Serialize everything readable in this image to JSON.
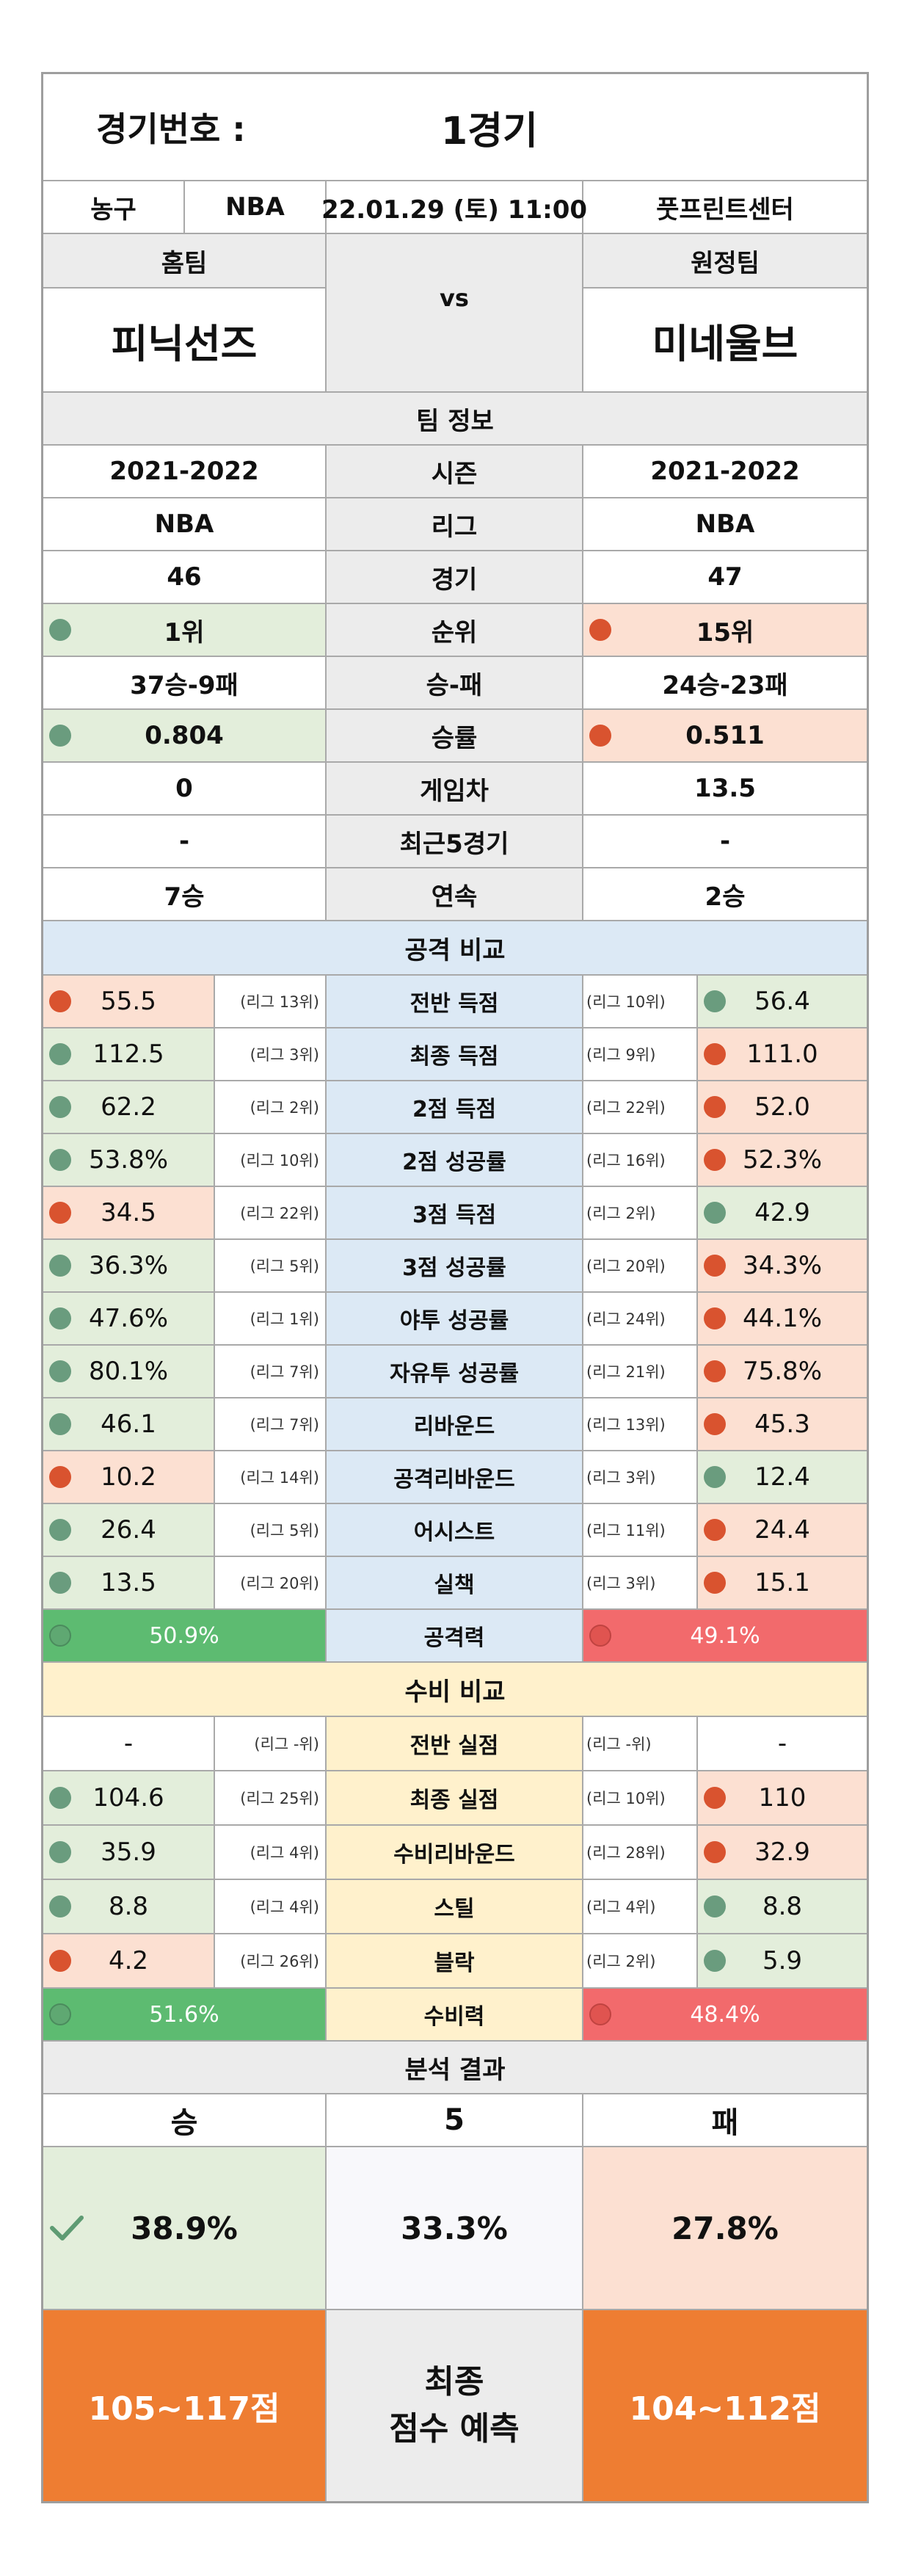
{
  "header": {
    "game_no_label": "경기번호 :",
    "game_no_value": "1경기",
    "sport": "농구",
    "league": "NBA",
    "datetime": "22.01.29 (토) 11:00",
    "venue": "풋프린트센터",
    "home_label": "홈팀",
    "away_label": "원정팀",
    "vs": "vs",
    "home_team": "피닉선즈",
    "away_team": "미네울브"
  },
  "team_info": {
    "title": "팀 정보",
    "rows": [
      {
        "label": "시즌",
        "home": "2021-2022",
        "away": "2021-2022"
      },
      {
        "label": "리그",
        "home": "NBA",
        "away": "NBA"
      },
      {
        "label": "경기",
        "home": "46",
        "away": "47"
      },
      {
        "label": "순위",
        "home": "1위",
        "away": "15위"
      },
      {
        "label": "승-패",
        "home": "37승-9패",
        "away": "24승-23패"
      },
      {
        "label": "승률",
        "home": "0.804",
        "away": "0.511"
      },
      {
        "label": "게임차",
        "home": "0",
        "away": "13.5"
      },
      {
        "label": "최근5경기",
        "home": "-",
        "away": "-"
      },
      {
        "label": "연속",
        "home": "7승",
        "away": "2승"
      }
    ]
  },
  "offense": {
    "title": "공격 비교",
    "rows": [
      {
        "label": "전반 득점",
        "home": "55.5",
        "home_rank": "(리그 13위)",
        "away": "56.4",
        "away_rank": "(리그 10위)",
        "home_better": false
      },
      {
        "label": "최종 득점",
        "home": "112.5",
        "home_rank": "(리그 3위)",
        "away": "111.0",
        "away_rank": "(리그 9위)",
        "home_better": true
      },
      {
        "label": "2점 득점",
        "home": "62.2",
        "home_rank": "(리그 2위)",
        "away": "52.0",
        "away_rank": "(리그 22위)",
        "home_better": true
      },
      {
        "label": "2점 성공률",
        "home": "53.8%",
        "home_rank": "(리그 10위)",
        "away": "52.3%",
        "away_rank": "(리그 16위)",
        "home_better": true
      },
      {
        "label": "3점 득점",
        "home": "34.5",
        "home_rank": "(리그 22위)",
        "away": "42.9",
        "away_rank": "(리그 2위)",
        "home_better": false
      },
      {
        "label": "3점 성공률",
        "home": "36.3%",
        "home_rank": "(리그 5위)",
        "away": "34.3%",
        "away_rank": "(리그 20위)",
        "home_better": true
      },
      {
        "label": "야투 성공률",
        "home": "47.6%",
        "home_rank": "(리그 1위)",
        "away": "44.1%",
        "away_rank": "(리그 24위)",
        "home_better": true
      },
      {
        "label": "자유투 성공률",
        "home": "80.1%",
        "home_rank": "(리그 7위)",
        "away": "75.8%",
        "away_rank": "(리그 21위)",
        "home_better": true
      },
      {
        "label": "리바운드",
        "home": "46.1",
        "home_rank": "(리그 7위)",
        "away": "45.3",
        "away_rank": "(리그 13위)",
        "home_better": true
      },
      {
        "label": "공격리바운드",
        "home": "10.2",
        "home_rank": "(리그 14위)",
        "away": "12.4",
        "away_rank": "(리그 3위)",
        "home_better": false
      },
      {
        "label": "어시스트",
        "home": "26.4",
        "home_rank": "(리그 5위)",
        "away": "24.4",
        "away_rank": "(리그 11위)",
        "home_better": true
      },
      {
        "label": "실책",
        "home": "13.5",
        "home_rank": "(리그 20위)",
        "away": "15.1",
        "away_rank": "(리그 3위)",
        "home_better": true
      }
    ],
    "power_label": "공격력",
    "home_power": "50.9%",
    "away_power": "49.1%"
  },
  "defense": {
    "title": "수비 비교",
    "rows": [
      {
        "label": "전반 실점",
        "home": "-",
        "home_rank": "(리그 -위)",
        "away": "-",
        "away_rank": "(리그 -위)",
        "home_better": null
      },
      {
        "label": "최종 실점",
        "home": "104.6",
        "home_rank": "(리그 25위)",
        "away": "110",
        "away_rank": "(리그 10위)",
        "home_better": true
      },
      {
        "label": "수비리바운드",
        "home": "35.9",
        "home_rank": "(리그 4위)",
        "away": "32.9",
        "away_rank": "(리그 28위)",
        "home_better": true
      },
      {
        "label": "스틸",
        "home": "8.8",
        "home_rank": "(리그 4위)",
        "away": "8.8",
        "away_rank": "(리그 4위)",
        "home_better": "both"
      },
      {
        "label": "블락",
        "home": "4.2",
        "home_rank": "(리그 26위)",
        "away": "5.9",
        "away_rank": "(리그 2위)",
        "home_better": false
      }
    ],
    "power_label": "수비력",
    "home_power": "51.6%",
    "away_power": "48.4%"
  },
  "result": {
    "title": "분석 결과",
    "win_label": "승",
    "draw_label": "5",
    "lose_label": "패",
    "win_pct": "38.9%",
    "draw_pct": "33.3%",
    "lose_pct": "27.8%",
    "home_score": "105~117점",
    "center_line1": "최종",
    "center_line2": "점수 예측",
    "away_score": "104~112점"
  },
  "colors": {
    "better": "#6a9c7e",
    "worse": "#d9532f",
    "offense_bg": "#dce9f5",
    "defense_bg": "#fff1cc",
    "orange": "#ee7d32"
  }
}
